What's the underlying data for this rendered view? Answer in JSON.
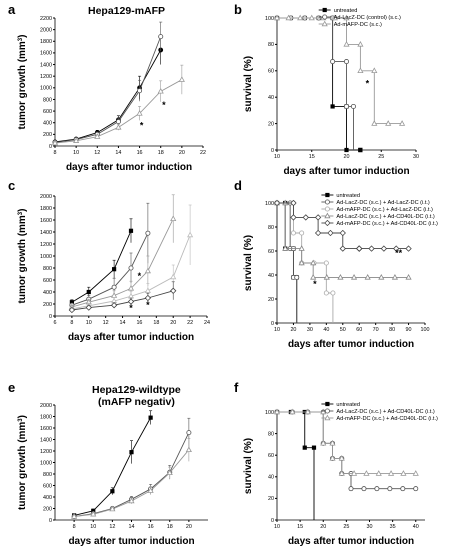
{
  "figure": {
    "common_xlabel": "days after tumor induction",
    "growth_ylabel_main": "tumor growth (mm",
    "growth_ylabel_sup": "3",
    "growth_ylabel_tail": ")",
    "survival_ylabel": "survival (%)"
  },
  "chart_data": [
    {
      "id": "a",
      "letter": "a",
      "type": "line",
      "title": "Hepa129-mAFP",
      "xlabel": "days after tumor induction",
      "ylabel": "tumor growth (mm3)",
      "xlim": [
        8,
        22
      ],
      "ylim": [
        0,
        2200
      ],
      "xticks": [
        8,
        10,
        12,
        14,
        16,
        18,
        20,
        22
      ],
      "yticks": [
        0,
        200,
        400,
        600,
        800,
        1000,
        1200,
        1400,
        1600,
        1800,
        2000,
        2200
      ],
      "series": [
        {
          "color": "#000000",
          "marker": "circle-filled",
          "x": [
            8,
            10,
            12,
            14,
            16,
            18
          ],
          "y": [
            70,
            120,
            230,
            450,
            1000,
            1650
          ],
          "err": [
            15,
            20,
            40,
            70,
            200,
            250
          ]
        },
        {
          "color": "#555555",
          "marker": "circle-open",
          "x": [
            8,
            10,
            12,
            14,
            16,
            18
          ],
          "y": [
            60,
            110,
            200,
            420,
            950,
            1880
          ],
          "err": [
            15,
            20,
            40,
            60,
            180,
            250
          ]
        },
        {
          "color": "#999999",
          "marker": "triangle",
          "x": [
            8,
            10,
            12,
            14,
            16,
            18,
            20
          ],
          "y": [
            50,
            90,
            160,
            320,
            560,
            940,
            1140
          ],
          "err": [
            10,
            20,
            30,
            50,
            120,
            180,
            250
          ]
        }
      ],
      "annotations": [
        {
          "text": "*",
          "x": 16.2,
          "y": 300
        },
        {
          "text": "*",
          "x": 18.3,
          "y": 650
        }
      ]
    },
    {
      "id": "b",
      "letter": "b",
      "type": "line",
      "title": "",
      "xlabel": "days after tumor induction",
      "ylabel": "survival (%)",
      "xlim": [
        10,
        30
      ],
      "ylim": [
        0,
        100
      ],
      "xticks": [
        10,
        15,
        20,
        25,
        30
      ],
      "yticks": [
        0,
        20,
        40,
        60,
        80,
        100
      ],
      "step": true,
      "legend_position": "top-right",
      "series": [
        {
          "name": "untreated",
          "color": "#000000",
          "marker": "square-filled",
          "x": [
            10,
            18,
            18,
            20,
            20,
            22,
            22
          ],
          "y": [
            100,
            100,
            33,
            33,
            0,
            0,
            0
          ]
        },
        {
          "name": "Ad-LacZ-DC (control) (s.c.)",
          "color": "#555555",
          "marker": "circle-open",
          "x": [
            10,
            18,
            18,
            20,
            20,
            21,
            21
          ],
          "y": [
            100,
            100,
            67,
            67,
            33,
            33,
            0
          ]
        },
        {
          "name": "Ad-mAFP-DC (s.c.)",
          "color": "#999999",
          "marker": "triangle",
          "x": [
            10,
            20,
            20,
            22,
            22,
            24,
            24,
            28
          ],
          "y": [
            100,
            100,
            80,
            80,
            60,
            60,
            20,
            20
          ]
        }
      ],
      "annotations": [
        {
          "text": "*",
          "x": 23,
          "y": 48
        }
      ]
    },
    {
      "id": "c",
      "letter": "c",
      "type": "line",
      "title": "",
      "xlabel": "days after tumor induction",
      "ylabel": "tumor growth (mm3)",
      "xlim": [
        6,
        24
      ],
      "ylim": [
        0,
        2000
      ],
      "xticks": [
        6,
        8,
        10,
        12,
        14,
        16,
        18,
        20,
        22,
        24
      ],
      "yticks": [
        0,
        200,
        400,
        600,
        800,
        1000,
        1200,
        1400,
        1600,
        1800,
        2000
      ],
      "series": [
        {
          "color": "#000000",
          "marker": "square-filled",
          "x": [
            8,
            10,
            13,
            15
          ],
          "y": [
            230,
            400,
            780,
            1420
          ],
          "err": [
            40,
            80,
            150,
            200
          ]
        },
        {
          "color": "#555555",
          "marker": "circle-open",
          "x": [
            8,
            10,
            13,
            15,
            17
          ],
          "y": [
            180,
            280,
            480,
            800,
            1380
          ],
          "err": [
            30,
            60,
            150,
            250,
            500
          ]
        },
        {
          "color": "#999999",
          "marker": "triangle",
          "x": [
            8,
            10,
            13,
            15,
            17,
            20
          ],
          "y": [
            150,
            230,
            340,
            460,
            750,
            1620
          ],
          "err": [
            30,
            50,
            80,
            120,
            250,
            400
          ]
        },
        {
          "color": "#bbbbbb",
          "marker": "triangle",
          "x": [
            8,
            10,
            13,
            15,
            17,
            20,
            22
          ],
          "y": [
            120,
            170,
            250,
            330,
            420,
            650,
            1350
          ],
          "err": [
            20,
            40,
            60,
            80,
            120,
            200,
            500
          ]
        },
        {
          "color": "#444444",
          "marker": "diamond-open",
          "x": [
            8,
            10,
            13,
            15,
            17,
            20
          ],
          "y": [
            100,
            140,
            180,
            240,
            300,
            420
          ],
          "err": [
            20,
            30,
            40,
            60,
            80,
            150
          ]
        }
      ],
      "annotations": [
        {
          "text": "*",
          "x": 15,
          "y": 80
        },
        {
          "text": "*",
          "x": 16,
          "y": 620
        },
        {
          "text": "*",
          "x": 17,
          "y": 130
        }
      ]
    },
    {
      "id": "d",
      "letter": "d",
      "type": "line",
      "title": "",
      "xlabel": "days after tumor induction",
      "ylabel": "survival (%)",
      "xlim": [
        10,
        100
      ],
      "ylim": [
        0,
        100
      ],
      "xticks": [
        10,
        20,
        30,
        40,
        50,
        60,
        70,
        80,
        90,
        100
      ],
      "yticks": [
        0,
        20,
        40,
        60,
        80,
        100
      ],
      "step": true,
      "legend_position": "top-right",
      "series": [
        {
          "name": "untreated",
          "color": "#000000",
          "marker": "square-filled",
          "x": [
            10,
            15,
            15,
            20,
            20,
            22,
            22
          ],
          "y": [
            100,
            100,
            62,
            62,
            38,
            38,
            0
          ]
        },
        {
          "name": "Ad-LacZ-DC (s.c.) + Ad-LacZ-DC (i.t.)",
          "color": "#555555",
          "marker": "circle-open",
          "x": [
            10,
            18,
            18,
            20,
            20,
            22,
            22
          ],
          "y": [
            100,
            100,
            62,
            62,
            38,
            38,
            0
          ]
        },
        {
          "name": "Ad-mAFP-DC (s.c.) + Ad-LacZ-DC (i.t.)",
          "color": "#aaaaaa",
          "marker": "circle-open",
          "x": [
            10,
            20,
            20,
            25,
            25,
            40,
            40,
            44,
            44
          ],
          "y": [
            100,
            100,
            75,
            75,
            50,
            50,
            25,
            25,
            0
          ]
        },
        {
          "name": "Ad-LacZ-DC (s.c.) + Ad-CD40L-DC (i.t.)",
          "color": "#888888",
          "marker": "triangle",
          "x": [
            10,
            15,
            15,
            25,
            25,
            32,
            32,
            90
          ],
          "y": [
            100,
            100,
            62,
            62,
            50,
            50,
            38,
            38
          ]
        },
        {
          "name": "Ad-mAFP-DC (s.c.) + Ad-CD40L-DC (i.t.)",
          "color": "#444444",
          "marker": "diamond-open",
          "x": [
            10,
            20,
            20,
            35,
            35,
            50,
            50,
            60,
            60,
            90
          ],
          "y": [
            100,
            100,
            88,
            88,
            75,
            75,
            62,
            62,
            62,
            62
          ]
        }
      ],
      "annotations": [
        {
          "text": "**",
          "x": 84,
          "y": 56
        },
        {
          "text": "*",
          "x": 33,
          "y": 30
        }
      ]
    },
    {
      "id": "e",
      "letter": "e",
      "type": "line",
      "title": "Hepa129-wildtype",
      "subtitle": "(mAFP negativ)",
      "xlabel": "days after tumor induction",
      "ylabel": "tumor growth (mm3)",
      "xlim": [
        6,
        22
      ],
      "ylim": [
        0,
        2000
      ],
      "xticks": [
        8,
        10,
        12,
        14,
        16,
        18,
        20
      ],
      "yticks": [
        0,
        200,
        400,
        600,
        800,
        1000,
        1200,
        1400,
        1600,
        1800,
        2000
      ],
      "series": [
        {
          "color": "#000000",
          "marker": "square-filled",
          "x": [
            8,
            10,
            12,
            14,
            16
          ],
          "y": [
            80,
            160,
            500,
            1180,
            1780
          ],
          "err": [
            15,
            30,
            60,
            200,
            120
          ]
        },
        {
          "color": "#555555",
          "marker": "circle-open",
          "x": [
            8,
            10,
            12,
            14,
            16,
            18,
            20
          ],
          "y": [
            60,
            110,
            200,
            360,
            540,
            830,
            1520
          ],
          "err": [
            10,
            20,
            30,
            50,
            80,
            120,
            250
          ]
        },
        {
          "color": "#999999",
          "marker": "triangle",
          "x": [
            8,
            10,
            12,
            14,
            16,
            18,
            20
          ],
          "y": [
            60,
            100,
            190,
            330,
            510,
            820,
            1220
          ],
          "err": [
            10,
            20,
            30,
            50,
            70,
            100,
            200
          ]
        }
      ],
      "annotations": []
    },
    {
      "id": "f",
      "letter": "f",
      "type": "line",
      "title": "",
      "xlabel": "days after tumor induction",
      "ylabel": "survival (%)",
      "xlim": [
        10,
        42
      ],
      "ylim": [
        0,
        100
      ],
      "xticks": [
        10,
        15,
        20,
        25,
        30,
        35,
        40
      ],
      "yticks": [
        0,
        20,
        40,
        60,
        80,
        100
      ],
      "step": true,
      "legend_position": "top-right",
      "series": [
        {
          "name": "untreated",
          "color": "#000000",
          "marker": "square-filled",
          "x": [
            10,
            16,
            16,
            18,
            18
          ],
          "y": [
            100,
            100,
            67,
            67,
            0
          ]
        },
        {
          "name": "Ad-LacZ-DC (s.c.) + Ad-CD40L-DC (i.t.)",
          "color": "#555555",
          "marker": "circle-open",
          "x": [
            10,
            20,
            20,
            22,
            22,
            24,
            24,
            26,
            26,
            40
          ],
          "y": [
            100,
            100,
            71,
            71,
            57,
            57,
            43,
            43,
            29,
            29
          ]
        },
        {
          "name": "Ad-mAFP-DC (s.c.) + Ad-CD40L-DC (i.t.)",
          "color": "#999999",
          "marker": "triangle",
          "x": [
            10,
            20,
            20,
            22,
            22,
            24,
            24,
            40
          ],
          "y": [
            100,
            100,
            71,
            71,
            57,
            57,
            43,
            43
          ]
        }
      ],
      "annotations": []
    }
  ]
}
